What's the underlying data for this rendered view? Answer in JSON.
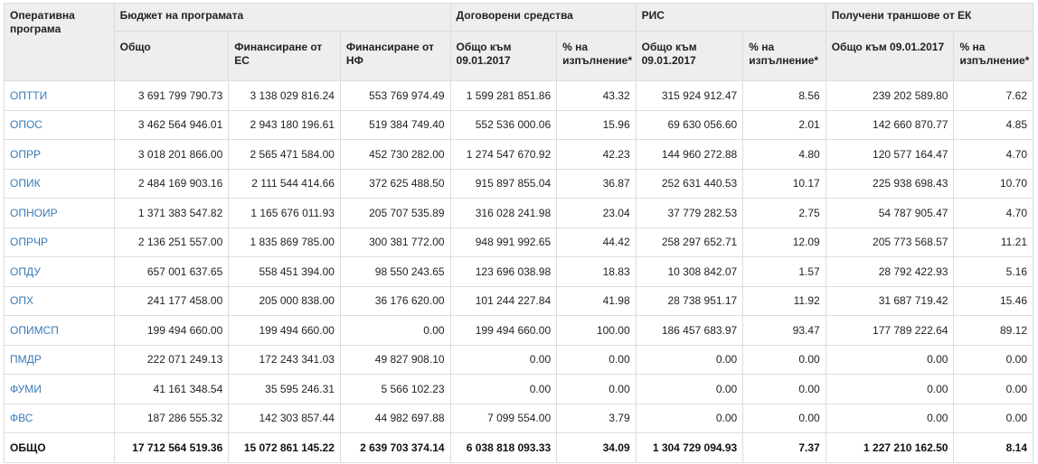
{
  "headers": {
    "program": "Оперативна програма",
    "budget": "Бюджет на програмата",
    "contracted": "Договорени средства",
    "ris": "РИС",
    "tranches": "Получени траншове от ЕК",
    "sub": [
      "Общо",
      "Финансиране от ЕС",
      "Финансиране от НФ",
      "Общо към 09.01.2017",
      "% на изпълнение*",
      "Общо към 09.01.2017",
      "% на изпълнение*",
      "Общо към 09.01.2017",
      "% на изпълнение*"
    ]
  },
  "rows": [
    {
      "name": "ОПТТИ",
      "values": [
        "3 691 799 790.73",
        "3 138 029 816.24",
        "553 769 974.49",
        "1 599 281 851.86",
        "43.32",
        "315 924 912.47",
        "8.56",
        "239 202 589.80",
        "7.62"
      ]
    },
    {
      "name": "ОПОС",
      "values": [
        "3 462 564 946.01",
        "2 943 180 196.61",
        "519 384 749.40",
        "552 536 000.06",
        "15.96",
        "69 630 056.60",
        "2.01",
        "142 660 870.77",
        "4.85"
      ]
    },
    {
      "name": "ОПРР",
      "values": [
        "3 018 201 866.00",
        "2 565 471 584.00",
        "452 730 282.00",
        "1 274 547 670.92",
        "42.23",
        "144 960 272.88",
        "4.80",
        "120 577 164.47",
        "4.70"
      ]
    },
    {
      "name": "ОПИК",
      "values": [
        "2 484 169 903.16",
        "2 111 544 414.66",
        "372 625 488.50",
        "915 897 855.04",
        "36.87",
        "252 631 440.53",
        "10.17",
        "225 938 698.43",
        "10.70"
      ]
    },
    {
      "name": "ОПНОИР",
      "values": [
        "1 371 383 547.82",
        "1 165 676 011.93",
        "205 707 535.89",
        "316 028 241.98",
        "23.04",
        "37 779 282.53",
        "2.75",
        "54 787 905.47",
        "4.70"
      ]
    },
    {
      "name": "ОПРЧР",
      "values": [
        "2 136 251 557.00",
        "1 835 869 785.00",
        "300 381 772.00",
        "948 991 992.65",
        "44.42",
        "258 297 652.71",
        "12.09",
        "205 773 568.57",
        "11.21"
      ]
    },
    {
      "name": "ОПДУ",
      "values": [
        "657 001 637.65",
        "558 451 394.00",
        "98 550 243.65",
        "123 696 038.98",
        "18.83",
        "10 308 842.07",
        "1.57",
        "28 792 422.93",
        "5.16"
      ]
    },
    {
      "name": "ОПХ",
      "values": [
        "241 177 458.00",
        "205 000 838.00",
        "36 176 620.00",
        "101 244 227.84",
        "41.98",
        "28 738 951.17",
        "11.92",
        "31 687 719.42",
        "15.46"
      ]
    },
    {
      "name": "ОПИМСП",
      "values": [
        "199 494 660.00",
        "199 494 660.00",
        "0.00",
        "199 494 660.00",
        "100.00",
        "186 457 683.97",
        "93.47",
        "177 789 222.64",
        "89.12"
      ]
    },
    {
      "name": "ПМДР",
      "values": [
        "222 071 249.13",
        "172 243 341.03",
        "49 827 908.10",
        "0.00",
        "0.00",
        "0.00",
        "0.00",
        "0.00",
        "0.00"
      ]
    },
    {
      "name": "ФУМИ",
      "values": [
        "41 161 348.54",
        "35 595 246.31",
        "5 566 102.23",
        "0.00",
        "0.00",
        "0.00",
        "0.00",
        "0.00",
        "0.00"
      ]
    },
    {
      "name": "ФВС",
      "values": [
        "187 286 555.32",
        "142 303 857.44",
        "44 982 697.88",
        "7 099 554.00",
        "3.79",
        "0.00",
        "0.00",
        "0.00",
        "0.00"
      ]
    }
  ],
  "total": {
    "name": "ОБЩО",
    "values": [
      "17 712 564 519.36",
      "15 072 861 145.22",
      "2 639 703 374.14",
      "6 038 818 093.33",
      "34.09",
      "1 304 729 094.93",
      "7.37",
      "1 227 210 162.50",
      "8.14"
    ]
  },
  "colors": {
    "link": "#3a7ab5",
    "header_bg": "#eeeeee",
    "border": "#dcdcdc"
  }
}
